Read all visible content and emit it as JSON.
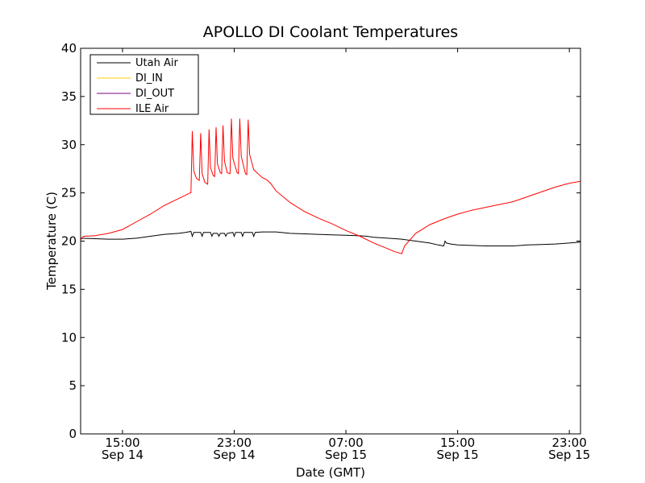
{
  "chart_data": {
    "type": "line",
    "title": "APOLLO DI Coolant Temperatures",
    "xlabel": "Date (GMT)",
    "ylabel": "Temperature (C)",
    "xlim": [
      12.0,
      47.8
    ],
    "ylim": [
      0,
      40
    ],
    "grid": false,
    "legend_position": "top-left",
    "x_unit": "hours since 00:00 Sep 14 (GMT)",
    "x_ticks": [
      {
        "value": 15,
        "time": "15:00",
        "date": "Sep 14"
      },
      {
        "value": 23,
        "time": "23:00",
        "date": "Sep 14"
      },
      {
        "value": 31,
        "time": "07:00",
        "date": "Sep 15"
      },
      {
        "value": 39,
        "time": "15:00",
        "date": "Sep 15"
      },
      {
        "value": 47,
        "time": "23:00",
        "date": "Sep 15"
      }
    ],
    "y_ticks": [
      0,
      5,
      10,
      15,
      20,
      25,
      30,
      35,
      40
    ],
    "series": [
      {
        "name": "Utah Air",
        "color": "#000000",
        "points": [
          [
            12.0,
            20.3
          ],
          [
            13.0,
            20.25
          ],
          [
            14.0,
            20.2
          ],
          [
            15.0,
            20.2
          ],
          [
            16.0,
            20.3
          ],
          [
            17.0,
            20.5
          ],
          [
            18.0,
            20.7
          ],
          [
            19.0,
            20.8
          ],
          [
            19.5,
            20.9
          ],
          [
            19.9,
            21.0
          ],
          [
            20.0,
            20.5
          ],
          [
            20.1,
            20.9
          ],
          [
            20.6,
            20.9
          ],
          [
            20.7,
            20.5
          ],
          [
            20.8,
            20.9
          ],
          [
            21.3,
            20.9
          ],
          [
            21.4,
            20.5
          ],
          [
            21.5,
            20.8
          ],
          [
            21.8,
            20.8
          ],
          [
            21.9,
            20.5
          ],
          [
            22.0,
            20.8
          ],
          [
            22.3,
            20.8
          ],
          [
            22.4,
            20.5
          ],
          [
            22.5,
            20.8
          ],
          [
            22.9,
            20.9
          ],
          [
            23.0,
            20.5
          ],
          [
            23.1,
            20.9
          ],
          [
            23.5,
            20.9
          ],
          [
            23.6,
            20.5
          ],
          [
            23.7,
            20.9
          ],
          [
            24.3,
            20.9
          ],
          [
            24.4,
            20.5
          ],
          [
            24.5,
            20.9
          ],
          [
            25.0,
            20.95
          ],
          [
            26.0,
            20.95
          ],
          [
            27.0,
            20.8
          ],
          [
            28.0,
            20.75
          ],
          [
            29.0,
            20.7
          ],
          [
            30.0,
            20.65
          ],
          [
            31.0,
            20.6
          ],
          [
            32.0,
            20.55
          ],
          [
            32.5,
            20.5
          ],
          [
            33.0,
            20.4
          ],
          [
            34.0,
            20.3
          ],
          [
            35.0,
            20.2
          ],
          [
            36.0,
            20.0
          ],
          [
            37.0,
            19.8
          ],
          [
            37.6,
            19.6
          ],
          [
            38.0,
            19.5
          ],
          [
            38.1,
            20.0
          ],
          [
            38.2,
            19.8
          ],
          [
            38.5,
            19.7
          ],
          [
            39.0,
            19.6
          ],
          [
            40.0,
            19.55
          ],
          [
            41.0,
            19.5
          ],
          [
            42.0,
            19.5
          ],
          [
            43.0,
            19.5
          ],
          [
            44.0,
            19.6
          ],
          [
            45.0,
            19.65
          ],
          [
            46.0,
            19.7
          ],
          [
            47.0,
            19.8
          ],
          [
            47.8,
            19.9
          ]
        ]
      },
      {
        "name": "DI_IN",
        "color": "#ffcc00",
        "points": []
      },
      {
        "name": "DI_OUT",
        "color": "#800080",
        "points": []
      },
      {
        "name": "ILE Air",
        "color": "#ff0000",
        "points": [
          [
            12.0,
            20.1
          ],
          [
            12.2,
            20.5
          ],
          [
            13.0,
            20.55
          ],
          [
            14.0,
            20.8
          ],
          [
            15.0,
            21.2
          ],
          [
            16.0,
            22.0
          ],
          [
            17.0,
            22.8
          ],
          [
            18.0,
            23.7
          ],
          [
            19.0,
            24.4
          ],
          [
            19.85,
            25.0
          ],
          [
            19.9,
            25.0
          ],
          [
            20.0,
            31.4
          ],
          [
            20.1,
            27.3
          ],
          [
            20.3,
            26.5
          ],
          [
            20.5,
            26.3
          ],
          [
            20.6,
            31.2
          ],
          [
            20.7,
            27.0
          ],
          [
            20.9,
            26.1
          ],
          [
            21.1,
            25.9
          ],
          [
            21.2,
            31.6
          ],
          [
            21.3,
            27.6
          ],
          [
            21.5,
            26.8
          ],
          [
            21.6,
            26.7
          ],
          [
            21.7,
            31.8
          ],
          [
            21.8,
            28.0
          ],
          [
            22.0,
            27.1
          ],
          [
            22.1,
            27.0
          ],
          [
            22.2,
            32.0
          ],
          [
            22.3,
            28.3
          ],
          [
            22.5,
            27.1
          ],
          [
            22.7,
            27.0
          ],
          [
            22.8,
            32.7
          ],
          [
            22.9,
            28.6
          ],
          [
            23.2,
            27.1
          ],
          [
            23.3,
            27.0
          ],
          [
            23.4,
            32.7
          ],
          [
            23.5,
            28.8
          ],
          [
            23.8,
            27.0
          ],
          [
            23.9,
            26.9
          ],
          [
            24.0,
            32.6
          ],
          [
            24.1,
            29.0
          ],
          [
            24.4,
            27.4
          ],
          [
            25.0,
            26.6
          ],
          [
            25.3,
            26.4
          ],
          [
            25.6,
            26.0
          ],
          [
            26.0,
            25.2
          ],
          [
            27.0,
            24.0
          ],
          [
            28.0,
            23.1
          ],
          [
            29.0,
            22.4
          ],
          [
            30.0,
            21.8
          ],
          [
            31.0,
            21.1
          ],
          [
            32.0,
            20.5
          ],
          [
            33.0,
            19.8
          ],
          [
            34.0,
            19.2
          ],
          [
            34.5,
            18.9
          ],
          [
            35.0,
            18.7
          ],
          [
            35.2,
            19.5
          ],
          [
            36.0,
            20.8
          ],
          [
            37.0,
            21.7
          ],
          [
            38.0,
            22.3
          ],
          [
            39.0,
            22.8
          ],
          [
            40.0,
            23.2
          ],
          [
            41.0,
            23.5
          ],
          [
            42.0,
            23.8
          ],
          [
            43.0,
            24.1
          ],
          [
            44.0,
            24.6
          ],
          [
            45.0,
            25.1
          ],
          [
            46.0,
            25.6
          ],
          [
            47.0,
            26.0
          ],
          [
            47.8,
            26.2
          ]
        ]
      }
    ]
  }
}
